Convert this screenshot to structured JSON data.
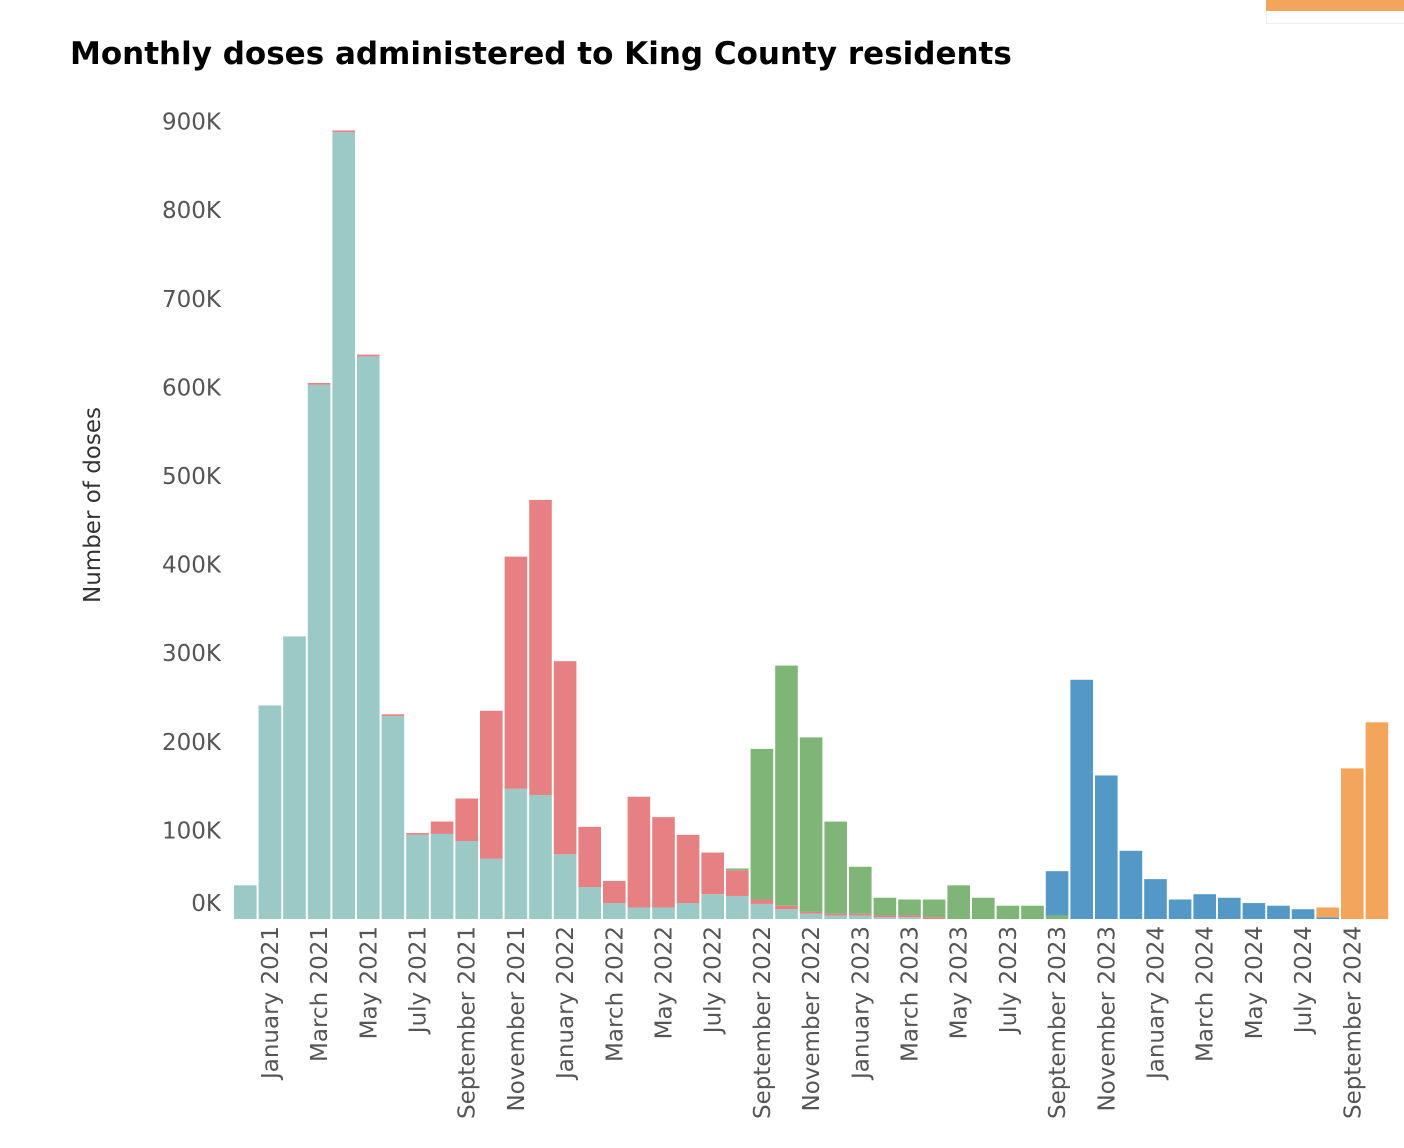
{
  "chart_data": {
    "type": "bar",
    "stacked": true,
    "title": "Monthly doses administered to King County residents",
    "xlabel": "",
    "ylabel": "Number of doses",
    "ylim": [
      0,
      910000
    ],
    "yticks": [
      {
        "value": 0,
        "label": "0K"
      },
      {
        "value": 100000,
        "label": "100K"
      },
      {
        "value": 200000,
        "label": "200K"
      },
      {
        "value": 300000,
        "label": "300K"
      },
      {
        "value": 400000,
        "label": "400K"
      },
      {
        "value": 500000,
        "label": "500K"
      },
      {
        "value": 600000,
        "label": "600K"
      },
      {
        "value": 700000,
        "label": "700K"
      },
      {
        "value": 800000,
        "label": "800K"
      },
      {
        "value": 900000,
        "label": "900K"
      }
    ],
    "grid": false,
    "categories": [
      "2020-12",
      "2021-01",
      "2021-02",
      "2021-03",
      "2021-04",
      "2021-05",
      "2021-06",
      "2021-07",
      "2021-08",
      "2021-09",
      "2021-10",
      "2021-11",
      "2021-12",
      "2022-01",
      "2022-02",
      "2022-03",
      "2022-04",
      "2022-05",
      "2022-06",
      "2022-07",
      "2022-08",
      "2022-09",
      "2022-10",
      "2022-11",
      "2022-12",
      "2023-01",
      "2023-02",
      "2023-03",
      "2023-04",
      "2023-05",
      "2023-06",
      "2023-07",
      "2023-08",
      "2023-09",
      "2023-10",
      "2023-11",
      "2023-12",
      "2024-01",
      "2024-02",
      "2024-03",
      "2024-04",
      "2024-05",
      "2024-06",
      "2024-07",
      "2024-08",
      "2024-09",
      "2024-10"
    ],
    "x_tick_labels": [
      {
        "index": 1,
        "label": "January 2021"
      },
      {
        "index": 3,
        "label": "March 2021"
      },
      {
        "index": 5,
        "label": "May 2021"
      },
      {
        "index": 7,
        "label": "July 2021"
      },
      {
        "index": 9,
        "label": "September 2021"
      },
      {
        "index": 11,
        "label": "November 2021"
      },
      {
        "index": 13,
        "label": "January 2022"
      },
      {
        "index": 15,
        "label": "March 2022"
      },
      {
        "index": 17,
        "label": "May 2022"
      },
      {
        "index": 19,
        "label": "July 2022"
      },
      {
        "index": 21,
        "label": "September 2022"
      },
      {
        "index": 23,
        "label": "November 2022"
      },
      {
        "index": 25,
        "label": "January 2023"
      },
      {
        "index": 27,
        "label": "March 2023"
      },
      {
        "index": 29,
        "label": "May 2023"
      },
      {
        "index": 31,
        "label": "July 2023"
      },
      {
        "index": 33,
        "label": "September 2023"
      },
      {
        "index": 35,
        "label": "November 2023"
      },
      {
        "index": 37,
        "label": "January 2024"
      },
      {
        "index": 39,
        "label": "March 2024"
      },
      {
        "index": 41,
        "label": "May 2024"
      },
      {
        "index": 43,
        "label": "July 2024"
      },
      {
        "index": 45,
        "label": "September 2024"
      }
    ],
    "series": [
      {
        "color": "#9bc9c5",
        "values": [
          38000,
          241000,
          319000,
          603000,
          888000,
          635000,
          229000,
          95000,
          96000,
          88000,
          68000,
          147000,
          140000,
          73000,
          36000,
          18000,
          13000,
          13000,
          18000,
          28000,
          26000,
          17000,
          11000,
          6000,
          4000,
          4000,
          2000,
          2000,
          0,
          0,
          0,
          0,
          0,
          0,
          0,
          0,
          0,
          0,
          0,
          0,
          0,
          0,
          0,
          0,
          0,
          0,
          0
        ]
      },
      {
        "color": "#e78082",
        "values": [
          0,
          0,
          0,
          2000,
          2000,
          2000,
          2000,
          2000,
          14000,
          48000,
          167000,
          262000,
          333000,
          218000,
          68000,
          25000,
          125000,
          102000,
          77000,
          47000,
          29000,
          5000,
          4000,
          2000,
          2000,
          2000,
          2000,
          2000,
          2000,
          0,
          0,
          0,
          0,
          0,
          0,
          0,
          0,
          0,
          0,
          0,
          0,
          0,
          0,
          0,
          0,
          0,
          0
        ]
      },
      {
        "color": "#7fb677",
        "values": [
          0,
          0,
          0,
          0,
          0,
          0,
          0,
          0,
          0,
          0,
          0,
          0,
          0,
          0,
          0,
          0,
          0,
          0,
          0,
          0,
          2000,
          170000,
          271000,
          197000,
          104000,
          53000,
          20000,
          18000,
          20000,
          38000,
          24000,
          15000,
          15000,
          4000,
          0,
          0,
          0,
          0,
          0,
          0,
          0,
          0,
          0,
          0,
          0,
          0,
          0
        ]
      },
      {
        "color": "#5498c8",
        "values": [
          0,
          0,
          0,
          0,
          0,
          0,
          0,
          0,
          0,
          0,
          0,
          0,
          0,
          0,
          0,
          0,
          0,
          0,
          0,
          0,
          0,
          0,
          0,
          0,
          0,
          0,
          0,
          0,
          0,
          0,
          0,
          0,
          0,
          50000,
          270000,
          162000,
          77000,
          45000,
          22000,
          28000,
          24000,
          18000,
          15000,
          11000,
          2000,
          0,
          0
        ]
      },
      {
        "color": "#f4a55c",
        "values": [
          0,
          0,
          0,
          0,
          0,
          0,
          0,
          0,
          0,
          0,
          0,
          0,
          0,
          0,
          0,
          0,
          0,
          0,
          0,
          0,
          0,
          0,
          0,
          0,
          0,
          0,
          0,
          0,
          0,
          0,
          0,
          0,
          0,
          0,
          0,
          0,
          0,
          0,
          0,
          0,
          0,
          0,
          0,
          0,
          11000,
          170000,
          222000
        ]
      }
    ],
    "legend_swatch_color": "#f4a55c"
  }
}
